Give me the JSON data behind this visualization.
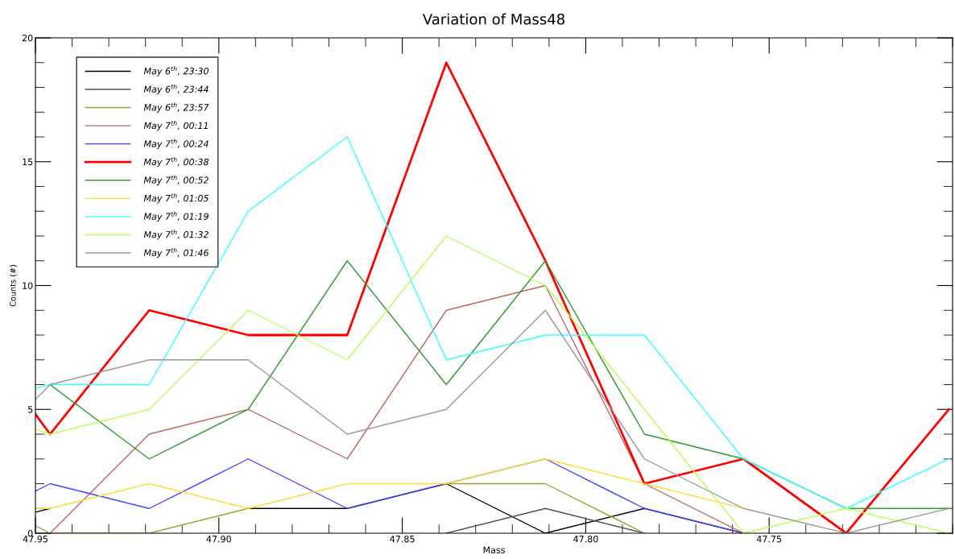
{
  "chart_data": {
    "type": "line",
    "title": "Variation of Mass48",
    "xlabel": "Mass",
    "ylabel": "Counts (#)",
    "x": [
      47.95,
      47.946,
      47.919,
      47.892,
      47.865,
      47.838,
      47.811,
      47.784,
      47.757,
      47.729,
      47.701
    ],
    "xlim": [
      47.95,
      47.7
    ],
    "xticks": [
      47.95,
      {
        "value": 47.9,
        "label": "47.90"
      },
      47.85,
      {
        "value": 47.8,
        "label": "47.80"
      },
      47.75
    ],
    "ylim": [
      0,
      20
    ],
    "yticks": [
      0,
      5,
      10,
      15,
      20
    ],
    "grid": false,
    "legend": "top left",
    "marker": "none",
    "line_style": "solid",
    "series": [
      {
        "name": "May 6$^{th}$, 23:30",
        "color": "#000000",
        "values": [
          0.85,
          1,
          null,
          1,
          1,
          2,
          0,
          1,
          0,
          null,
          null
        ]
      },
      {
        "name": "May 6$^{th}$, 23:44",
        "color": "#505050",
        "values": [
          null,
          null,
          null,
          null,
          null,
          0,
          1,
          0,
          null,
          null,
          null
        ]
      },
      {
        "name": "May 6$^{th}$, 23:57",
        "color": "#a0a030",
        "values": [
          0.3,
          0,
          0,
          1,
          null,
          2,
          2,
          0,
          null,
          null,
          null
        ]
      },
      {
        "name": "May 7$^{th}$, 00:11",
        "color": "#bb6666",
        "values": [
          null,
          0,
          4,
          5,
          3,
          9,
          10,
          2,
          0,
          null,
          null
        ]
      },
      {
        "name": "May 7$^{th}$, 00:24",
        "color": "#4444ff",
        "values": [
          1.7,
          2,
          1,
          3,
          1,
          2,
          3,
          1,
          0,
          null,
          null
        ]
      },
      {
        "name": "May 7$^{th}$, 00:38",
        "color": "#ff0000",
        "values": [
          4.8,
          4,
          9,
          8,
          8,
          19,
          11,
          2,
          3,
          0,
          5
        ]
      },
      {
        "name": "May 7$^{th}$, 00:52",
        "color": "#339933",
        "values": [
          null,
          6,
          3,
          5,
          11,
          6,
          11,
          4,
          3,
          1,
          1
        ]
      },
      {
        "name": "May 7$^{th}$, 01:05",
        "color": "#ffdd33",
        "values": [
          1,
          1,
          2,
          1,
          2,
          2,
          3,
          2,
          1,
          null,
          null
        ]
      },
      {
        "name": "May 7$^{th}$, 01:19",
        "color": "#33ffff",
        "values": [
          5.85,
          6,
          6,
          13,
          16,
          7,
          8,
          8,
          3,
          1,
          3
        ]
      },
      {
        "name": "May 7$^{th}$, 01:32",
        "color": "#bbff55",
        "values": [
          4.2,
          4,
          5,
          9,
          7,
          12,
          10,
          5,
          0,
          1,
          0
        ]
      },
      {
        "name": "May 7$^{th}$, 01:46",
        "color": "#999999",
        "values": [
          5.4,
          6,
          7,
          7,
          4,
          5,
          9,
          3,
          1,
          0,
          1
        ]
      }
    ]
  }
}
